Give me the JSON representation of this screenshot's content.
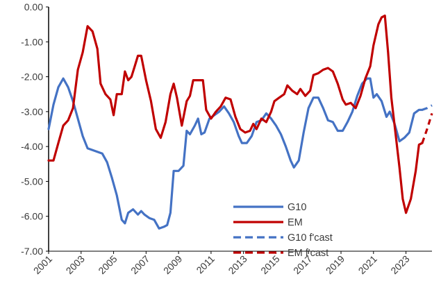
{
  "chart_data": {
    "type": "line",
    "title": "",
    "xlabel": "",
    "ylabel": "",
    "xlim": [
      2001,
      2024.6
    ],
    "ylim": [
      -7,
      0
    ],
    "y_ticks": [
      "0.00",
      "-1.00",
      "-2.00",
      "-3.00",
      "-4.00",
      "-5.00",
      "-6.00",
      "-7.00"
    ],
    "x_ticks": [
      "2001",
      "2003",
      "2005",
      "2007",
      "2009",
      "2011",
      "2013",
      "2015",
      "2017",
      "2019",
      "2021",
      "2023"
    ],
    "grid": false,
    "legend_position": "bottom-right",
    "series": [
      {
        "name": "G10",
        "color": "#4472C4",
        "dashed": false,
        "points": [
          [
            2001.0,
            -3.5
          ],
          [
            2001.3,
            -2.8
          ],
          [
            2001.6,
            -2.3
          ],
          [
            2001.9,
            -2.05
          ],
          [
            2002.2,
            -2.3
          ],
          [
            2002.5,
            -2.7
          ],
          [
            2002.8,
            -3.2
          ],
          [
            2003.1,
            -3.7
          ],
          [
            2003.4,
            -4.05
          ],
          [
            2003.7,
            -4.1
          ],
          [
            2004.0,
            -4.15
          ],
          [
            2004.3,
            -4.2
          ],
          [
            2004.6,
            -4.45
          ],
          [
            2004.9,
            -4.9
          ],
          [
            2005.2,
            -5.4
          ],
          [
            2005.5,
            -6.1
          ],
          [
            2005.7,
            -6.2
          ],
          [
            2005.9,
            -5.9
          ],
          [
            2006.2,
            -5.8
          ],
          [
            2006.5,
            -5.95
          ],
          [
            2006.7,
            -5.85
          ],
          [
            2006.9,
            -5.95
          ],
          [
            2007.2,
            -6.05
          ],
          [
            2007.5,
            -6.1
          ],
          [
            2007.8,
            -6.35
          ],
          [
            2008.1,
            -6.3
          ],
          [
            2008.3,
            -6.25
          ],
          [
            2008.5,
            -5.9
          ],
          [
            2008.7,
            -4.7
          ],
          [
            2009.0,
            -4.7
          ],
          [
            2009.3,
            -4.55
          ],
          [
            2009.5,
            -3.55
          ],
          [
            2009.7,
            -3.65
          ],
          [
            2010.0,
            -3.4
          ],
          [
            2010.2,
            -3.2
          ],
          [
            2010.4,
            -3.65
          ],
          [
            2010.6,
            -3.6
          ],
          [
            2010.9,
            -3.2
          ],
          [
            2011.2,
            -3.1
          ],
          [
            2011.5,
            -3.0
          ],
          [
            2011.8,
            -2.85
          ],
          [
            2012.1,
            -3.05
          ],
          [
            2012.4,
            -3.3
          ],
          [
            2012.7,
            -3.7
          ],
          [
            2012.9,
            -3.9
          ],
          [
            2013.2,
            -3.9
          ],
          [
            2013.5,
            -3.7
          ],
          [
            2013.8,
            -3.3
          ],
          [
            2014.1,
            -3.25
          ],
          [
            2014.4,
            -3.05
          ],
          [
            2014.7,
            -3.2
          ],
          [
            2015.0,
            -3.4
          ],
          [
            2015.3,
            -3.65
          ],
          [
            2015.6,
            -4.0
          ],
          [
            2015.9,
            -4.4
          ],
          [
            2016.1,
            -4.6
          ],
          [
            2016.4,
            -4.4
          ],
          [
            2016.7,
            -3.6
          ],
          [
            2017.0,
            -2.9
          ],
          [
            2017.3,
            -2.6
          ],
          [
            2017.6,
            -2.6
          ],
          [
            2017.9,
            -2.9
          ],
          [
            2018.2,
            -3.25
          ],
          [
            2018.5,
            -3.3
          ],
          [
            2018.8,
            -3.55
          ],
          [
            2019.1,
            -3.55
          ],
          [
            2019.4,
            -3.3
          ],
          [
            2019.7,
            -3.0
          ],
          [
            2020.0,
            -2.55
          ],
          [
            2020.3,
            -2.2
          ],
          [
            2020.6,
            -2.05
          ],
          [
            2020.8,
            -2.05
          ],
          [
            2021.0,
            -2.6
          ],
          [
            2021.2,
            -2.5
          ],
          [
            2021.5,
            -2.7
          ],
          [
            2021.8,
            -3.15
          ],
          [
            2022.0,
            -3.0
          ],
          [
            2022.3,
            -3.35
          ],
          [
            2022.6,
            -3.85
          ],
          [
            2022.9,
            -3.75
          ],
          [
            2023.2,
            -3.6
          ],
          [
            2023.5,
            -3.05
          ],
          [
            2023.8,
            -2.95
          ],
          [
            2024.0,
            -2.95
          ]
        ]
      },
      {
        "name": "EM",
        "color": "#C00000",
        "dashed": false,
        "points": [
          [
            2001.0,
            -4.4
          ],
          [
            2001.3,
            -4.4
          ],
          [
            2001.6,
            -3.9
          ],
          [
            2001.9,
            -3.4
          ],
          [
            2002.2,
            -3.25
          ],
          [
            2002.5,
            -2.9
          ],
          [
            2002.8,
            -1.8
          ],
          [
            2003.1,
            -1.3
          ],
          [
            2003.4,
            -0.55
          ],
          [
            2003.7,
            -0.7
          ],
          [
            2004.0,
            -1.2
          ],
          [
            2004.2,
            -2.2
          ],
          [
            2004.5,
            -2.5
          ],
          [
            2004.8,
            -2.65
          ],
          [
            2005.0,
            -3.1
          ],
          [
            2005.2,
            -2.5
          ],
          [
            2005.5,
            -2.5
          ],
          [
            2005.7,
            -1.85
          ],
          [
            2005.9,
            -2.1
          ],
          [
            2006.1,
            -2.0
          ],
          [
            2006.3,
            -1.7
          ],
          [
            2006.5,
            -1.4
          ],
          [
            2006.7,
            -1.4
          ],
          [
            2007.0,
            -2.1
          ],
          [
            2007.3,
            -2.7
          ],
          [
            2007.6,
            -3.5
          ],
          [
            2007.9,
            -3.75
          ],
          [
            2008.2,
            -3.3
          ],
          [
            2008.5,
            -2.5
          ],
          [
            2008.7,
            -2.2
          ],
          [
            2008.9,
            -2.6
          ],
          [
            2009.2,
            -3.4
          ],
          [
            2009.5,
            -2.7
          ],
          [
            2009.7,
            -2.55
          ],
          [
            2009.9,
            -2.1
          ],
          [
            2010.2,
            -2.1
          ],
          [
            2010.5,
            -2.1
          ],
          [
            2010.7,
            -2.95
          ],
          [
            2011.0,
            -3.2
          ],
          [
            2011.3,
            -3.0
          ],
          [
            2011.6,
            -2.85
          ],
          [
            2011.9,
            -2.6
          ],
          [
            2012.2,
            -2.65
          ],
          [
            2012.5,
            -3.15
          ],
          [
            2012.8,
            -3.5
          ],
          [
            2013.1,
            -3.6
          ],
          [
            2013.4,
            -3.55
          ],
          [
            2013.6,
            -3.35
          ],
          [
            2013.8,
            -3.5
          ],
          [
            2014.1,
            -3.2
          ],
          [
            2014.4,
            -3.3
          ],
          [
            2014.7,
            -3.0
          ],
          [
            2014.9,
            -2.7
          ],
          [
            2015.2,
            -2.6
          ],
          [
            2015.5,
            -2.5
          ],
          [
            2015.7,
            -2.25
          ],
          [
            2016.0,
            -2.4
          ],
          [
            2016.3,
            -2.5
          ],
          [
            2016.5,
            -2.35
          ],
          [
            2016.8,
            -2.55
          ],
          [
            2017.1,
            -2.4
          ],
          [
            2017.3,
            -1.95
          ],
          [
            2017.6,
            -1.9
          ],
          [
            2017.9,
            -1.8
          ],
          [
            2018.2,
            -1.75
          ],
          [
            2018.5,
            -1.85
          ],
          [
            2018.8,
            -2.2
          ],
          [
            2019.1,
            -2.65
          ],
          [
            2019.3,
            -2.8
          ],
          [
            2019.6,
            -2.75
          ],
          [
            2019.9,
            -2.9
          ],
          [
            2020.2,
            -2.55
          ],
          [
            2020.5,
            -2.05
          ],
          [
            2020.8,
            -1.7
          ],
          [
            2021.0,
            -1.1
          ],
          [
            2021.3,
            -0.5
          ],
          [
            2021.5,
            -0.3
          ],
          [
            2021.7,
            -0.25
          ],
          [
            2021.9,
            -1.3
          ],
          [
            2022.1,
            -2.6
          ],
          [
            2022.3,
            -3.4
          ],
          [
            2022.6,
            -4.6
          ],
          [
            2022.8,
            -5.5
          ],
          [
            2023.0,
            -5.9
          ],
          [
            2023.3,
            -5.5
          ],
          [
            2023.6,
            -4.7
          ],
          [
            2023.8,
            -3.95
          ],
          [
            2024.0,
            -3.9
          ]
        ]
      },
      {
        "name": "G10 f'cast",
        "color": "#4472C4",
        "dashed": true,
        "points": [
          [
            2024.0,
            -2.95
          ],
          [
            2024.3,
            -2.9
          ],
          [
            2024.6,
            -2.82
          ]
        ]
      },
      {
        "name": "EM f'cast",
        "color": "#C00000",
        "dashed": true,
        "points": [
          [
            2024.0,
            -3.9
          ],
          [
            2024.3,
            -3.5
          ],
          [
            2024.6,
            -3.05
          ]
        ]
      }
    ]
  }
}
